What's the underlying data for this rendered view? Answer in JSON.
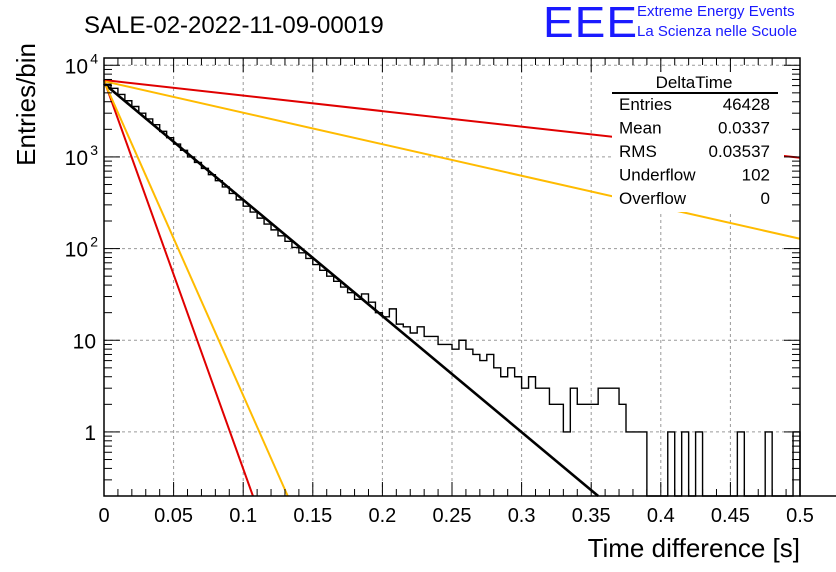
{
  "title": "SALE-02-2022-11-09-00019",
  "logo": {
    "mark": "EEE",
    "line1": "Extreme Energy Events",
    "line2": "La Scienza nelle Scuole"
  },
  "colors": {
    "histogram": "#000000",
    "fit": "#000000",
    "red_curves": "#e00000",
    "orange_curves": "#ffbb00",
    "grid": "#9a9a9a",
    "logo": "#1a1aff"
  },
  "stats": {
    "title": "DeltaTime",
    "rows": [
      {
        "label": "Entries",
        "value": "46428"
      },
      {
        "label": "Mean",
        "value": "0.0337"
      },
      {
        "label": "RMS",
        "value": "0.03537"
      },
      {
        "label": "Underflow",
        "value": "102"
      },
      {
        "label": "Overflow",
        "value": "0"
      }
    ]
  },
  "chart_data": {
    "type": "histogram",
    "title": "SALE-02-2022-11-09-00019",
    "xlabel": "Time difference [s]",
    "ylabel": "Entries/bin",
    "xlim": [
      0,
      0.5
    ],
    "ylim": [
      0.2,
      12000
    ],
    "yscale": "log",
    "grid": true,
    "x_ticks": [
      "0",
      "0.05",
      "0.1",
      "0.15",
      "0.2",
      "0.25",
      "0.3",
      "0.35",
      "0.4",
      "0.45",
      "0.5"
    ],
    "y_ticks": [
      {
        "value": 1,
        "label": "1"
      },
      {
        "value": 10,
        "label": "10"
      },
      {
        "value": 100,
        "label": "10^2"
      },
      {
        "value": 1000,
        "label": "10^3"
      },
      {
        "value": 10000,
        "label": "10^4"
      }
    ],
    "bin_width": 0.005,
    "histogram": [
      6200,
      5600,
      4800,
      4100,
      3550,
      3000,
      2600,
      2250,
      1900,
      1620,
      1380,
      1180,
      1000,
      870,
      750,
      640,
      550,
      470,
      400,
      340,
      290,
      250,
      215,
      185,
      160,
      138,
      120,
      103,
      90,
      78,
      67,
      58,
      50,
      44,
      38,
      33,
      28,
      32,
      26,
      20,
      18,
      22,
      15,
      14,
      12,
      14,
      11,
      11,
      9,
      9,
      8,
      10,
      8,
      7,
      6,
      7,
      5,
      4,
      5,
      4,
      3,
      4,
      3,
      3,
      2,
      2,
      1,
      3,
      2,
      2,
      2,
      3,
      3,
      3,
      2,
      1,
      1,
      1,
      0,
      0,
      0,
      1,
      0,
      1,
      0,
      1,
      0,
      0,
      0,
      0,
      0,
      1,
      0,
      0,
      0,
      1,
      0,
      0,
      0,
      1,
      0,
      0,
      0,
      0,
      0,
      0,
      0,
      0,
      0,
      0
    ],
    "series": [
      {
        "color": "#000000",
        "x": [
          0,
          0.355
        ],
        "y": [
          6300,
          0.2
        ]
      },
      {
        "color": "#e00000",
        "x": [
          0,
          0.5
        ],
        "y": [
          6900,
          980
        ]
      },
      {
        "color": "#ffbb00",
        "x": [
          0,
          0.5
        ],
        "y": [
          6700,
          128
        ]
      },
      {
        "color": "#e00000",
        "x": [
          0,
          0.107
        ],
        "y": [
          6900,
          0.2
        ]
      },
      {
        "color": "#ffbb00",
        "x": [
          0,
          0.132
        ],
        "y": [
          6700,
          0.2
        ]
      }
    ]
  }
}
